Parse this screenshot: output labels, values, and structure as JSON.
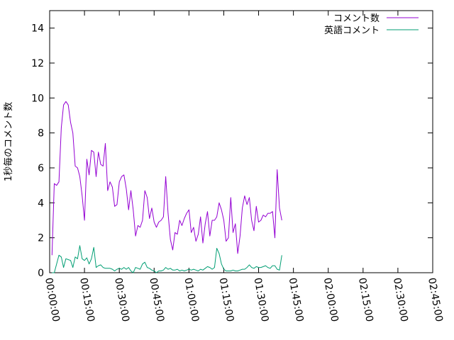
{
  "chart_data": {
    "type": "line",
    "title": "",
    "xlabel": "",
    "ylabel": "1秒毎のコメント数",
    "x_ticks": [
      "00:00:00",
      "00:15:00",
      "00:30:00",
      "00:45:00",
      "01:00:00",
      "01:15:00",
      "01:30:00",
      "01:45:00",
      "02:00:00",
      "02:15:00",
      "02:30:00",
      "02:45:00"
    ],
    "x_tick_seconds": [
      0,
      900,
      1800,
      2700,
      3600,
      4500,
      5400,
      6300,
      7200,
      8100,
      9000,
      9900
    ],
    "xlim_seconds": [
      0,
      9900
    ],
    "y_ticks": [
      0,
      2,
      4,
      6,
      8,
      10,
      12,
      14
    ],
    "ylim": [
      0,
      15
    ],
    "legend_position": "top-right",
    "grid": false,
    "sample_interval_seconds": 60,
    "series_start_seconds": 60,
    "series": [
      {
        "name": "コメント数",
        "color": "#9400d3",
        "values": [
          1.0,
          5.1,
          5.0,
          5.2,
          8.3,
          9.6,
          9.8,
          9.6,
          8.6,
          8.0,
          6.1,
          6.0,
          5.5,
          4.4,
          3.0,
          6.5,
          5.6,
          7.0,
          6.9,
          5.5,
          6.9,
          6.2,
          6.1,
          7.4,
          4.7,
          5.2,
          4.9,
          3.8,
          3.9,
          5.2,
          5.5,
          5.6,
          4.8,
          3.6,
          4.7,
          3.6,
          2.1,
          2.7,
          2.6,
          3.0,
          4.7,
          4.3,
          3.1,
          3.7,
          2.9,
          2.6,
          2.9,
          3.0,
          3.2,
          5.5,
          3.4,
          1.9,
          1.3,
          2.3,
          2.2,
          3.0,
          2.7,
          3.1,
          3.4,
          3.6,
          2.3,
          2.6,
          1.8,
          2.2,
          3.2,
          1.7,
          2.8,
          3.5,
          2.1,
          3.0,
          3.0,
          3.2,
          4.0,
          3.6,
          3.0,
          1.8,
          2.0,
          4.3,
          2.3,
          2.8,
          1.1,
          2.1,
          3.7,
          4.4,
          3.9,
          4.3,
          3.0,
          2.4,
          3.8,
          2.9,
          3.0,
          3.3,
          3.2,
          3.4,
          3.4,
          3.5,
          2.0,
          5.9,
          3.7,
          3.0
        ]
      },
      {
        "name": "英語コメント",
        "color": "#009e73",
        "values": [
          0.0,
          0.0,
          0.5,
          1.0,
          0.9,
          0.3,
          0.8,
          0.75,
          0.7,
          0.3,
          0.9,
          0.8,
          1.55,
          0.8,
          0.7,
          0.85,
          0.5,
          0.8,
          1.45,
          0.3,
          0.4,
          0.45,
          0.3,
          0.25,
          0.25,
          0.25,
          0.2,
          0.1,
          0.2,
          0.25,
          0.2,
          0.3,
          0.2,
          0.3,
          0.1,
          0.0,
          0.3,
          0.25,
          0.2,
          0.5,
          0.6,
          0.3,
          0.25,
          0.15,
          0.1,
          0.0,
          0.1,
          0.1,
          0.15,
          0.3,
          0.2,
          0.25,
          0.15,
          0.15,
          0.2,
          0.1,
          0.15,
          0.1,
          0.15,
          0.2,
          0.15,
          0.2,
          0.15,
          0.1,
          0.2,
          0.15,
          0.25,
          0.35,
          0.3,
          0.2,
          0.3,
          1.4,
          1.1,
          0.5,
          0.2,
          0.1,
          0.1,
          0.1,
          0.15,
          0.1,
          0.1,
          0.15,
          0.2,
          0.2,
          0.3,
          0.45,
          0.3,
          0.25,
          0.35,
          0.3,
          0.3,
          0.35,
          0.4,
          0.3,
          0.25,
          0.4,
          0.4,
          0.2,
          0.15,
          1.0
        ]
      }
    ]
  }
}
